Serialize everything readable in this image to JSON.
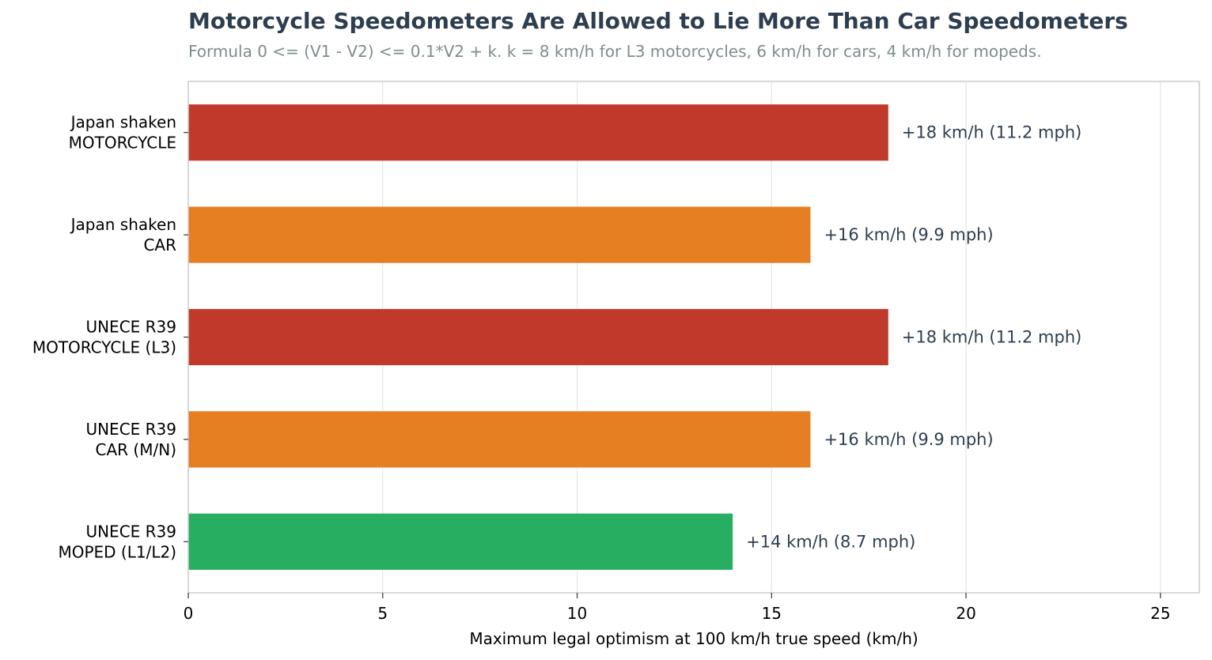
{
  "chart_data": {
    "type": "bar",
    "orientation": "horizontal",
    "title": "Motorcycle Speedometers Are Allowed to Lie More Than Car Speedometers",
    "subtitle": "Formula 0 <= (V1 - V2) <= 0.1*V2 + k. k = 8 km/h for L3 motorcycles, 6 km/h for cars, 4 km/h for mopeds.",
    "xlabel": "Maximum legal optimism at 100 km/h true speed (km/h)",
    "ylabel": "",
    "xlim": [
      0,
      26
    ],
    "xticks": [
      0,
      5,
      10,
      15,
      20,
      25
    ],
    "grid": "vertical",
    "legend": "none",
    "categories": [
      [
        "Japan shaken",
        "MOTORCYCLE"
      ],
      [
        "Japan shaken",
        "CAR"
      ],
      [
        "UNECE R39",
        "MOTORCYCLE (L3)"
      ],
      [
        "UNECE R39",
        "CAR (M/N)"
      ],
      [
        "UNECE R39",
        "MOPED (L1/L2)"
      ]
    ],
    "values": [
      18,
      16,
      18,
      16,
      14
    ],
    "value_labels": [
      "+18 km/h  (11.2 mph)",
      "+16 km/h  (9.9 mph)",
      "+18 km/h  (11.2 mph)",
      "+16 km/h  (9.9 mph)",
      "+14 km/h  (8.7 mph)"
    ],
    "colors": [
      "#c0392b",
      "#e67e22",
      "#c0392b",
      "#e67e22",
      "#27ae60"
    ]
  }
}
